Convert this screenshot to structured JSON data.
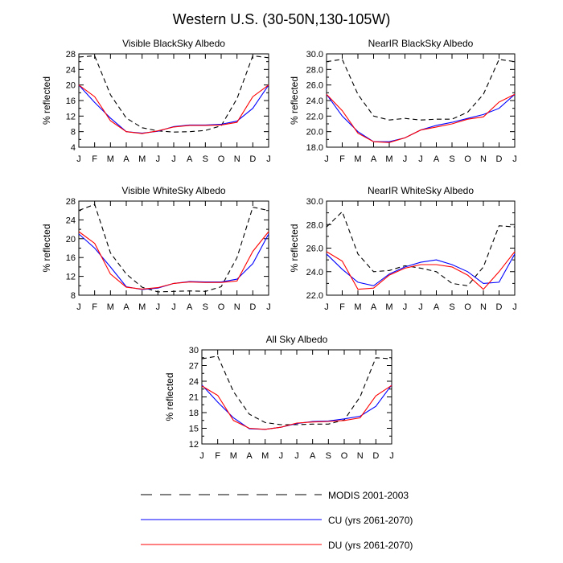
{
  "figure_title": "Western U.S. (30-50N,130-105W)",
  "months": [
    "J",
    "F",
    "M",
    "A",
    "M",
    "J",
    "J",
    "A",
    "S",
    "O",
    "N",
    "D",
    "J"
  ],
  "ylabel": "% reflected",
  "colors": {
    "modis": "#000000",
    "cu": "#0000ff",
    "du": "#ff0000"
  },
  "legend": [
    {
      "key": "modis",
      "label": "MODIS 2001-2003",
      "style": "dashed"
    },
    {
      "key": "cu",
      "label": "CU (yrs 2061-2070)",
      "style": "solid"
    },
    {
      "key": "du",
      "label": "DU (yrs 2061-2070)",
      "style": "solid"
    }
  ],
  "chart_data": [
    {
      "type": "line",
      "title": "Visible BlackSky Albedo",
      "xlabel": "",
      "ylabel": "% reflected",
      "ylim": [
        4,
        28
      ],
      "yticks": [
        "4",
        "8",
        "12",
        "16",
        "20",
        "24",
        "28"
      ],
      "yminor": 2,
      "series": [
        {
          "name": "MODIS 2001-2003",
          "key": "modis",
          "values": [
            27.2,
            27.5,
            17.5,
            11.5,
            9.0,
            8.2,
            7.9,
            8.0,
            8.3,
            9.5,
            16.5,
            27.5,
            27.0
          ]
        },
        {
          "name": "CU (yrs 2061-2070)",
          "key": "cu",
          "values": [
            20.0,
            15.5,
            11.5,
            8.0,
            7.6,
            8.1,
            9.3,
            9.7,
            9.7,
            9.9,
            10.7,
            14.0,
            20.0
          ]
        },
        {
          "name": "DU (yrs 2061-2070)",
          "key": "du",
          "values": [
            20.0,
            17.0,
            10.8,
            8.0,
            7.5,
            8.2,
            9.2,
            9.6,
            9.6,
            9.7,
            10.4,
            17.0,
            20.0
          ]
        }
      ]
    },
    {
      "type": "line",
      "title": "NearIR BlackSky Albedo",
      "xlabel": "",
      "ylabel": "% reflected",
      "ylim": [
        18,
        30
      ],
      "yticks": [
        "18.0",
        "20.0",
        "22.0",
        "24.0",
        "26.0",
        "28.0",
        "30.0"
      ],
      "yminor": 1,
      "series": [
        {
          "name": "MODIS 2001-2003",
          "key": "modis",
          "values": [
            29.0,
            29.3,
            24.8,
            22.0,
            21.5,
            21.7,
            21.5,
            21.6,
            21.6,
            22.5,
            24.8,
            29.3,
            29.0
          ]
        },
        {
          "name": "CU (yrs 2061-2070)",
          "key": "cu",
          "values": [
            24.8,
            22.0,
            20.0,
            18.7,
            18.7,
            19.2,
            20.2,
            20.8,
            21.2,
            21.7,
            22.2,
            23.0,
            24.8
          ]
        },
        {
          "name": "DU (yrs 2061-2070)",
          "key": "du",
          "values": [
            24.8,
            22.7,
            19.8,
            18.7,
            18.6,
            19.2,
            20.2,
            20.6,
            21.0,
            21.6,
            21.9,
            23.8,
            24.8
          ]
        }
      ]
    },
    {
      "type": "line",
      "title": "Visible WhiteSky Albedo",
      "xlabel": "",
      "ylabel": "% reflected",
      "ylim": [
        8,
        28
      ],
      "yticks": [
        "8",
        "12",
        "16",
        "20",
        "24",
        "28"
      ],
      "yminor": 2,
      "series": [
        {
          "name": "MODIS 2001-2003",
          "key": "modis",
          "values": [
            26.0,
            27.3,
            17.0,
            12.5,
            9.7,
            8.7,
            8.8,
            8.9,
            8.8,
            9.8,
            16.0,
            26.7,
            26.0
          ]
        },
        {
          "name": "CU (yrs 2061-2070)",
          "key": "cu",
          "values": [
            21.0,
            18.0,
            14.0,
            9.8,
            9.2,
            9.5,
            10.5,
            10.9,
            10.8,
            10.8,
            11.4,
            14.7,
            21.0
          ]
        },
        {
          "name": "DU (yrs 2061-2070)",
          "key": "du",
          "values": [
            21.5,
            19.0,
            12.5,
            9.7,
            9.3,
            9.6,
            10.5,
            10.8,
            10.7,
            10.7,
            11.0,
            17.3,
            21.5
          ]
        }
      ]
    },
    {
      "type": "line",
      "title": "NearIR WhiteSky Albedo",
      "xlabel": "",
      "ylabel": "% reflected",
      "ylim": [
        22,
        30
      ],
      "yticks": [
        "22.0",
        "24.0",
        "26.0",
        "28.0",
        "30.0"
      ],
      "yminor": 1,
      "series": [
        {
          "name": "MODIS 2001-2003",
          "key": "modis",
          "values": [
            27.8,
            29.1,
            25.5,
            24.0,
            24.1,
            24.5,
            24.3,
            24.0,
            23.0,
            22.8,
            24.4,
            27.9,
            27.8
          ]
        },
        {
          "name": "CU (yrs 2061-2070)",
          "key": "cu",
          "values": [
            25.5,
            24.2,
            23.1,
            22.8,
            23.8,
            24.4,
            24.8,
            25.0,
            24.6,
            24.0,
            23.0,
            23.1,
            25.5
          ]
        },
        {
          "name": "DU (yrs 2061-2070)",
          "key": "du",
          "values": [
            25.7,
            24.9,
            22.5,
            22.6,
            23.7,
            24.3,
            24.6,
            24.6,
            24.4,
            23.7,
            22.5,
            24.0,
            25.7
          ]
        }
      ]
    },
    {
      "type": "line",
      "title": "All Sky Albedo",
      "xlabel": "",
      "ylabel": "% reflected",
      "ylim": [
        12,
        30
      ],
      "yticks": [
        "12",
        "15",
        "18",
        "21",
        "24",
        "27",
        "30"
      ],
      "yminor": 1.5,
      "series": [
        {
          "name": "MODIS 2001-2003",
          "key": "modis",
          "values": [
            28.3,
            28.8,
            22.0,
            17.7,
            16.1,
            15.7,
            15.7,
            15.8,
            15.8,
            16.6,
            21.0,
            28.5,
            28.3
          ]
        },
        {
          "name": "CU (yrs 2061-2070)",
          "key": "cu",
          "values": [
            23.3,
            20.0,
            17.0,
            14.9,
            14.8,
            15.2,
            15.9,
            16.3,
            16.4,
            16.8,
            17.3,
            19.2,
            23.3
          ]
        },
        {
          "name": "DU (yrs 2061-2070)",
          "key": "du",
          "values": [
            23.1,
            21.3,
            16.5,
            15.0,
            14.8,
            15.2,
            16.0,
            16.2,
            16.3,
            16.5,
            17.0,
            21.2,
            23.2
          ]
        }
      ]
    }
  ]
}
